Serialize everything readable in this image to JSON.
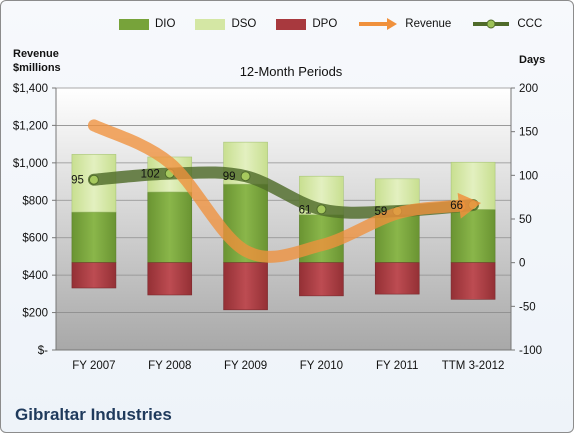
{
  "chart_data": {
    "type": "bar",
    "title": "12-Month Periods",
    "categories": [
      "FY 2007",
      "FY 2008",
      "FY 2009",
      "FY 2010",
      "FY 2011",
      "TTM 3-2012"
    ],
    "series": [
      {
        "name": "DIO",
        "kind": "stacked-bar",
        "axis": "right",
        "color": "#77a33a",
        "values": [
          58,
          81,
          90,
          55,
          55,
          61
        ]
      },
      {
        "name": "DSO",
        "kind": "stacked-bar",
        "axis": "right",
        "color": "#d4e7a4",
        "values": [
          66,
          40,
          48,
          44,
          41,
          54
        ]
      },
      {
        "name": "DPO",
        "kind": "stacked-bar-negative",
        "axis": "right",
        "color": "#a8393e",
        "values": [
          29,
          37,
          54,
          38,
          36,
          42
        ]
      },
      {
        "name": "Revenue",
        "kind": "line",
        "axis": "left",
        "color": "#f0913c",
        "values": [
          1200,
          1000,
          530,
          560,
          730,
          780
        ]
      },
      {
        "name": "CCC",
        "kind": "line",
        "axis": "right",
        "color": "#4f6b2a",
        "values": [
          95,
          102,
          99,
          61,
          59,
          66
        ]
      }
    ],
    "data_labels": [
      "95",
      "102",
      "99",
      "61",
      "59",
      "66"
    ],
    "left_axis": {
      "label_line1": "Revenue",
      "label_line2": "$millions",
      "range": [
        0,
        1400
      ],
      "ticks": [
        0,
        200,
        400,
        600,
        800,
        1000,
        1200,
        1400
      ],
      "tick_labels": [
        "$-",
        "$200",
        "$400",
        "$600",
        "$800",
        "$1,000",
        "$1,200",
        "$1,400"
      ]
    },
    "right_axis": {
      "label": "Days",
      "range": [
        -100,
        200
      ],
      "ticks": [
        -100,
        -50,
        0,
        50,
        100,
        150,
        200
      ],
      "tick_labels": [
        "-100",
        "-50",
        "0",
        "50",
        "100",
        "150",
        "200"
      ]
    },
    "grid": true,
    "legend_position": "top"
  },
  "legend": {
    "dio": "DIO",
    "dso": "DSO",
    "dpo": "DPO",
    "revenue": "Revenue",
    "ccc": "CCC"
  },
  "company_name": "Gibraltar Industries",
  "colors": {
    "dio": "#77a33a",
    "dso": "#d4e7a4",
    "dpo": "#a8393e",
    "revenue": "#f0913c",
    "ccc": "#4f6b2a"
  }
}
